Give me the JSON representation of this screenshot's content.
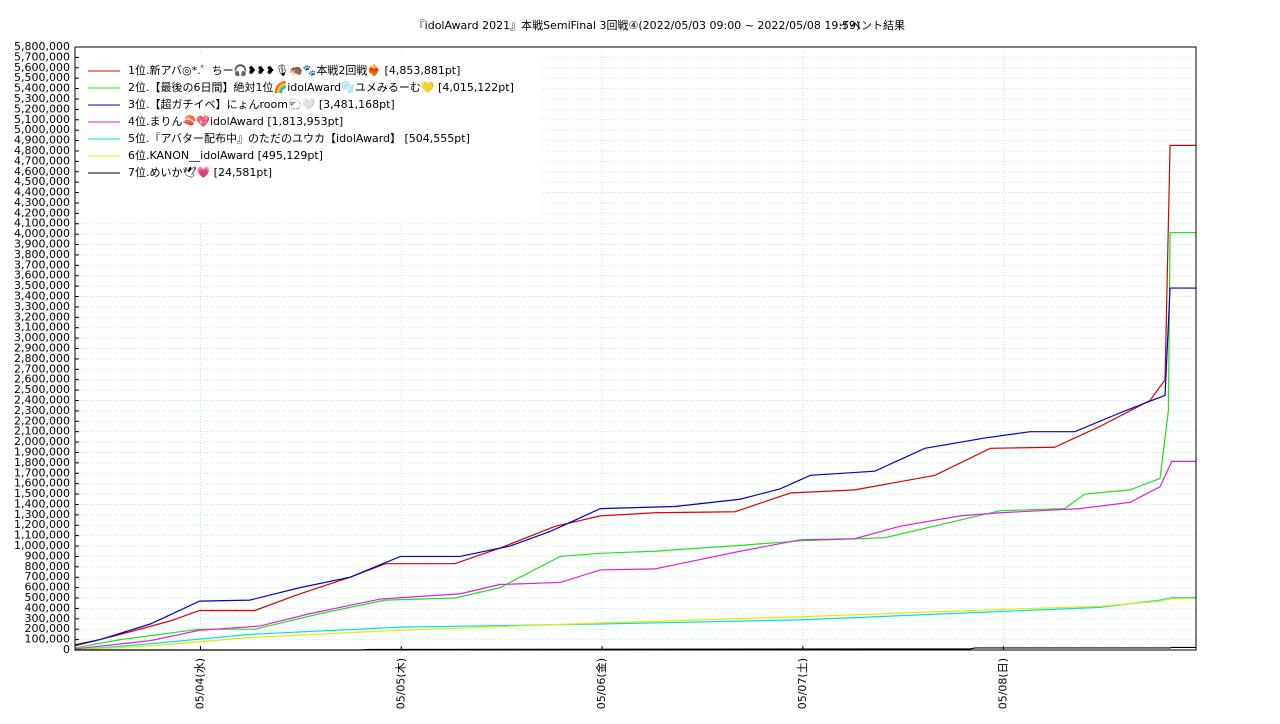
{
  "chart_data": {
    "type": "line",
    "title": "『idolAward 2021』本戦SemiFinal 3回戦④(2022/05/03 09:00 ~ 2022/05/08 19:59)",
    "subtitle": "イベント結果",
    "xlim": [
      0,
      134
    ],
    "xticks": [
      {
        "value": 15,
        "label": "05/04(水)"
      },
      {
        "value": 39,
        "label": "05/05(木)"
      },
      {
        "value": 63,
        "label": "05/06(金)"
      },
      {
        "value": 87,
        "label": "05/07(土)"
      },
      {
        "value": 111,
        "label": "05/08(日)"
      }
    ],
    "ylim": [
      0,
      5800000
    ],
    "yticks": [
      0,
      {
        "value": 100000,
        "label": "100,000"
      },
      {
        "value": 200000,
        "label": "200,000"
      },
      {
        "value": 300000,
        "label": "300,000"
      },
      {
        "value": 400000,
        "label": "400,000"
      },
      {
        "value": 500000,
        "label": "500,000"
      },
      {
        "value": 600000,
        "label": "600,000"
      },
      {
        "value": 700000,
        "label": "700,000"
      },
      {
        "value": 800000,
        "label": "800,000"
      },
      {
        "value": 900000,
        "label": "900,000"
      },
      {
        "value": 1000000,
        "label": "1,000,000"
      },
      {
        "value": 1100000,
        "label": "1,100,000"
      },
      {
        "value": 1200000,
        "label": "1,200,000"
      },
      {
        "value": 1300000,
        "label": "1,300,000"
      },
      {
        "value": 1400000,
        "label": "1,400,000"
      },
      {
        "value": 1500000,
        "label": "1,500,000"
      },
      {
        "value": 1600000,
        "label": "1,600,000"
      },
      {
        "value": 1700000,
        "label": "1,700,000"
      },
      {
        "value": 1800000,
        "label": "1,800,000"
      },
      {
        "value": 1900000,
        "label": "1,900,000"
      },
      {
        "value": 2000000,
        "label": "2,000,000"
      },
      {
        "value": 2100000,
        "label": "2,100,000"
      },
      {
        "value": 2200000,
        "label": "2,200,000"
      },
      {
        "value": 2300000,
        "label": "2,300,000"
      },
      {
        "value": 2400000,
        "label": "2,400,000"
      },
      {
        "value": 2500000,
        "label": "2,500,000"
      },
      {
        "value": 2600000,
        "label": "2,600,000"
      },
      {
        "value": 2700000,
        "label": "2,700,000"
      },
      {
        "value": 2800000,
        "label": "2,800,000"
      },
      {
        "value": 2900000,
        "label": "2,900,000"
      },
      {
        "value": 3000000,
        "label": "3,000,000"
      },
      {
        "value": 3100000,
        "label": "3,100,000"
      },
      {
        "value": 3200000,
        "label": "3,200,000"
      },
      {
        "value": 3300000,
        "label": "3,300,000"
      },
      {
        "value": 3400000,
        "label": "3,400,000"
      },
      {
        "value": 3500000,
        "label": "3,500,000"
      },
      {
        "value": 3600000,
        "label": "3,600,000"
      },
      {
        "value": 3700000,
        "label": "3,700,000"
      },
      {
        "value": 3800000,
        "label": "3,800,000"
      },
      {
        "value": 3900000,
        "label": "3,900,000"
      },
      {
        "value": 4000000,
        "label": "4,000,000"
      },
      {
        "value": 4100000,
        "label": "4,100,000"
      },
      {
        "value": 4200000,
        "label": "4,200,000"
      },
      {
        "value": 4300000,
        "label": "4,300,000"
      },
      {
        "value": 4400000,
        "label": "4,400,000"
      },
      {
        "value": 4500000,
        "label": "4,500,000"
      },
      {
        "value": 4600000,
        "label": "4,600,000"
      },
      {
        "value": 4700000,
        "label": "4,700,000"
      },
      {
        "value": 4800000,
        "label": "4,800,000"
      },
      {
        "value": 4900000,
        "label": "4,900,000"
      },
      {
        "value": 5000000,
        "label": "5,000,000"
      },
      {
        "value": 5100000,
        "label": "5,100,000"
      },
      {
        "value": 5200000,
        "label": "5,200,000"
      },
      {
        "value": 5300000,
        "label": "5,300,000"
      },
      {
        "value": 5400000,
        "label": "5,400,000"
      },
      {
        "value": 5500000,
        "label": "5,500,000"
      },
      {
        "value": 5600000,
        "label": "5,600,000"
      },
      {
        "value": 5700000,
        "label": "5,700,000"
      },
      {
        "value": 5800000,
        "label": "5,800,000"
      }
    ],
    "grid": true,
    "legend": "upper left",
    "series": [
      {
        "name": "1位.新アバ◎*.゜ちー🎧❥❥❥🎙🦔🐾本戦2回戦❤️‍🔥 [4,853,881pt]",
        "color": "#dd0000",
        "x": [
          0,
          5.4,
          11.4,
          14.9,
          21.5,
          26.9,
          32.9,
          37.1,
          45.4,
          50.8,
          57.4,
          62.8,
          69.3,
          78.9,
          85.5,
          93.2,
          102.8,
          109.4,
          117.1,
          122.5,
          128.5,
          130.3,
          130.9,
          134.0
        ],
        "values": [
          40000,
          150000,
          280000,
          380000,
          380000,
          540000,
          700000,
          830000,
          830000,
          980000,
          1190000,
          1290000,
          1320000,
          1330000,
          1510000,
          1540000,
          1680000,
          1940000,
          1950000,
          2150000,
          2400000,
          2600000,
          4853881,
          4853881
        ]
      },
      {
        "name": "2位.【最後の6日間】絶対1位🌈idolAward🫧ユメみるーむ💛 [4,015,122pt]",
        "color": "#22e022",
        "x": [
          0,
          5.4,
          14.9,
          21.5,
          29.3,
          37.1,
          45.4,
          50.8,
          58.0,
          62.8,
          69.3,
          80.1,
          86.7,
          96.8,
          105.8,
          110.6,
          118.3,
          120.7,
          126.1,
          129.7,
          130.7,
          130.9,
          134.0
        ],
        "values": [
          20000,
          100000,
          200000,
          200000,
          350000,
          480000,
          500000,
          600000,
          900000,
          930000,
          950000,
          1010000,
          1050000,
          1080000,
          1250000,
          1340000,
          1360000,
          1500000,
          1540000,
          1650000,
          2300000,
          4015122,
          4015122
        ]
      },
      {
        "name": "3位.【超ガチイベ】にょんroom🐑🤍 [3,481,168pt]",
        "color": "#0000cc",
        "x": [
          0,
          3.0,
          9.0,
          14.9,
          20.9,
          26.9,
          32.9,
          38.9,
          46.0,
          52.0,
          56.8,
          62.8,
          71.7,
          79.5,
          84.3,
          87.9,
          95.6,
          101.6,
          108.8,
          114.2,
          119.5,
          125.5,
          130.3,
          130.9,
          134.0
        ],
        "values": [
          50000,
          100000,
          250000,
          470000,
          480000,
          600000,
          700000,
          900000,
          900000,
          1000000,
          1140000,
          1360000,
          1380000,
          1450000,
          1550000,
          1680000,
          1720000,
          1940000,
          2040000,
          2100000,
          2100000,
          2300000,
          2450000,
          3481168,
          3481168
        ]
      },
      {
        "name": "4位.まりん🍣💖idolAward [1,813,953pt]",
        "color": "#dd22dd",
        "x": [
          0,
          9.0,
          14.9,
          22.1,
          28.1,
          36.5,
          46.0,
          50.8,
          58.0,
          62.8,
          69.3,
          79.5,
          86.7,
          93.2,
          98.6,
          105.8,
          110.6,
          120.1,
          126.1,
          129.7,
          131.1,
          134.0
        ],
        "values": [
          10000,
          90000,
          190000,
          230000,
          350000,
          490000,
          540000,
          630000,
          650000,
          770000,
          780000,
          950000,
          1060000,
          1070000,
          1190000,
          1290000,
          1320000,
          1360000,
          1420000,
          1570000,
          1813953,
          1813953
        ]
      },
      {
        "name": "5位.『アバター配布中』のただのユウカ【idolAward】 [504,555pt]",
        "color": "#00e0e0",
        "x": [
          0,
          9.0,
          20.9,
          38.9,
          62.8,
          86.7,
          110.6,
          122.5,
          129.7,
          131.1,
          134.0
        ],
        "values": [
          0,
          60000,
          150000,
          220000,
          250000,
          290000,
          370000,
          410000,
          480000,
          504555,
          504555
        ]
      },
      {
        "name": "6位.KANON__idolAward [495,129pt]",
        "color": "#e8e800",
        "x": [
          0,
          9.0,
          20.9,
          38.9,
          62.8,
          86.7,
          110.6,
          122.5,
          129.7,
          131.1,
          134.0
        ],
        "values": [
          0,
          40000,
          120000,
          190000,
          260000,
          320000,
          390000,
          420000,
          470000,
          495129,
          495129
        ]
      },
      {
        "name": "7位.めいか🕊💗 [24,581pt]",
        "color": "#000000",
        "x": [
          0,
          34.1,
          35.3,
          107.0,
          107.6,
          130.9,
          131.1,
          134.0
        ],
        "values": [
          0,
          0,
          5000,
          10000,
          20000,
          20000,
          24581,
          24581
        ]
      }
    ]
  }
}
